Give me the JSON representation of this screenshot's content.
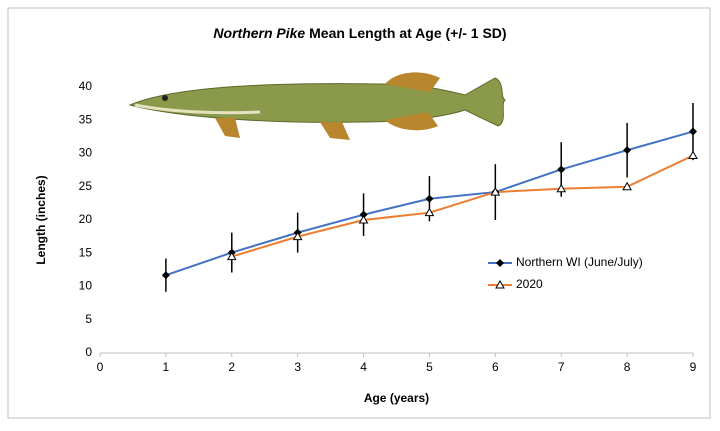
{
  "chart_data": {
    "type": "line",
    "title": {
      "italic": "Northern Pike",
      "text": "Mean Length at Age (+/- 1 SD)"
    },
    "xlabel": "Age (years)",
    "ylabel": "Length (inches)",
    "x": [
      1,
      2,
      3,
      4,
      5,
      6,
      7,
      8,
      9
    ],
    "series": [
      {
        "name": "Northern WI (June/July)",
        "color": "#4472c4",
        "marker": "diamond",
        "values": [
          11.7,
          15.1,
          18.1,
          20.8,
          23.2,
          24.2,
          27.6,
          30.5,
          33.3
        ],
        "errors": [
          2.5,
          3.0,
          3.0,
          3.2,
          3.4,
          4.2,
          4.1,
          4.1,
          4.3
        ]
      },
      {
        "name": "2020",
        "color": "#ed7d31",
        "marker": "triangle",
        "values": [
          null,
          14.5,
          17.5,
          20.0,
          21.1,
          24.2,
          24.7,
          25.0,
          29.7
        ]
      }
    ],
    "xlim": [
      0,
      9
    ],
    "xticks": [
      0,
      1,
      2,
      3,
      4,
      5,
      6,
      7,
      8,
      9
    ],
    "ylim": [
      0,
      40
    ],
    "yticks": [
      0,
      5,
      10,
      15,
      20,
      25,
      30,
      35,
      40
    ],
    "grid": false,
    "legend": "right"
  }
}
